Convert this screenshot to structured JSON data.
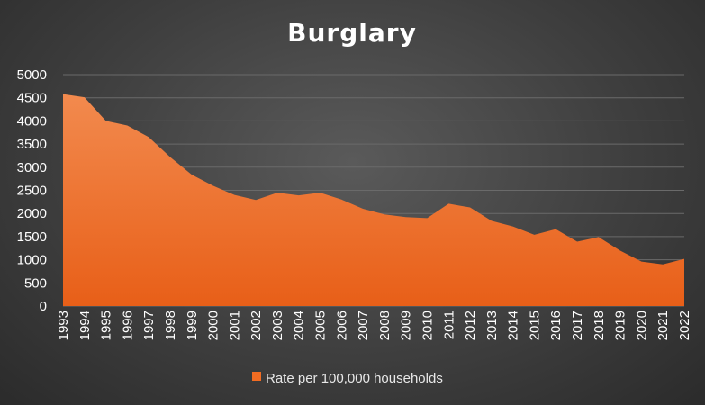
{
  "chart_data": {
    "type": "area",
    "title": "Burglary",
    "x": [
      "1993",
      "1994",
      "1995",
      "1996",
      "1997",
      "1998",
      "1999",
      "2000",
      "2001",
      "2002",
      "2003",
      "2004",
      "2005",
      "2006",
      "2007",
      "2008",
      "2009",
      "2010",
      "2011",
      "2012",
      "2013",
      "2014",
      "2015",
      "2016",
      "2017",
      "2018",
      "2019",
      "2020",
      "2021",
      "2022"
    ],
    "series": [
      {
        "name": "Rate per 100,000 households",
        "values": [
          4580,
          4510,
          4000,
          3900,
          3650,
          3220,
          2840,
          2600,
          2400,
          2290,
          2450,
          2390,
          2450,
          2300,
          2100,
          1980,
          1920,
          1900,
          2210,
          2130,
          1840,
          1720,
          1540,
          1660,
          1390,
          1490,
          1200,
          960,
          900,
          1020
        ]
      }
    ],
    "ylim": [
      0,
      5000
    ],
    "yticks": [
      0,
      500,
      1000,
      1500,
      2000,
      2500,
      3000,
      3500,
      4000,
      4500,
      5000
    ],
    "grid": true,
    "legend": "bottom",
    "colors": {
      "area": "#f26c22",
      "grid": "#6a6a6a"
    }
  }
}
